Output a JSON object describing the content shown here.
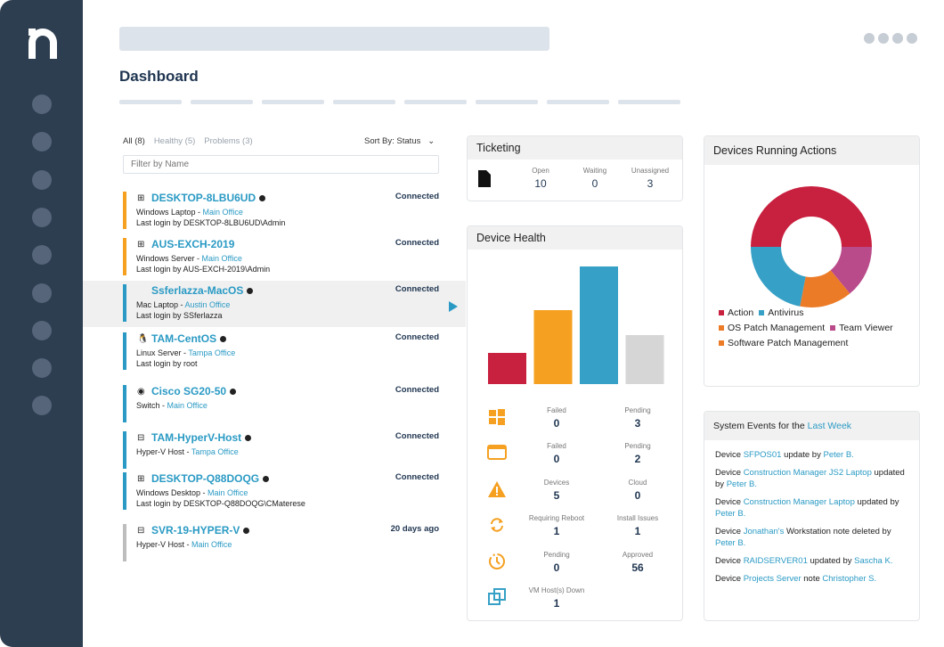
{
  "page_title": "Dashboard",
  "device_list": {
    "filters": [
      {
        "label": "All (8)",
        "active": true
      },
      {
        "label": "Healthy (5)"
      },
      {
        "label": "Problems (3)"
      }
    ],
    "sort_label": "Sort By: Status",
    "filter_placeholder": "Filter by Name",
    "devices": [
      {
        "name": "DESKTOP-8LBU6UD",
        "os": "windows",
        "info_icon": true,
        "type": "Windows Laptop",
        "location": "Main Office",
        "login": "Last login by DESKTOP-8LBU6UD\\Admin",
        "status": "Connected",
        "color": "#f5a021"
      },
      {
        "name": "AUS-EXCH-2019",
        "os": "windows",
        "type": "Windows Server",
        "location": "Main Office",
        "login": "Last login by AUS-EXCH-2019\\Admin",
        "status": "Connected",
        "color": "#f5a021"
      },
      {
        "name": "Ssferlazza-MacOS",
        "os": "apple",
        "info_icon": true,
        "type": "Mac Laptop",
        "location": "Austin Office",
        "login": "Last login by SSferlazza",
        "status": "Connected",
        "color": "#2a9ac4",
        "selected": true
      },
      {
        "name": "TAM-CentOS",
        "os": "linux",
        "info_icon": true,
        "type": "Linux Server",
        "location": "Tampa Office",
        "login": "Last login by root",
        "status": "Connected",
        "color": "#2a9ac4"
      },
      {
        "name": "Cisco SG20-50",
        "os": "network",
        "info_icon": true,
        "type": "Switch",
        "location": "Main Office",
        "login": "",
        "status": "Connected",
        "color": "#2a9ac4"
      },
      {
        "name": "TAM-HyperV-Host",
        "os": "hyperv",
        "info_icon": true,
        "type": "Hyper-V Host",
        "location": "Tampa Office",
        "login": "",
        "status": "Connected",
        "color": "#2a9ac4"
      },
      {
        "name": "DESKTOP-Q88DOQG",
        "os": "windows",
        "info_icon": true,
        "type": "Windows Desktop",
        "location": "Main Office",
        "login": "Last login by DESKTOP-Q88DOQG\\CMaterese",
        "status": "Connected",
        "color": "#2a9ac4"
      },
      {
        "name": "SVR-19-HYPER-V",
        "os": "hyperv",
        "info_icon": true,
        "type": "Hyper-V Host",
        "location": "Main Office",
        "login": "",
        "status": "20 days ago",
        "color": "#bdbdbd"
      }
    ]
  },
  "ticketing": {
    "title": "Ticketing",
    "icon": "document-icon",
    "cols": [
      {
        "label": "Open",
        "value": "10"
      },
      {
        "label": "Waiting",
        "value": "0"
      },
      {
        "label": "Unassigned",
        "value": "3"
      }
    ]
  },
  "device_health": {
    "title": "Device Health",
    "bars": [
      {
        "value": 35,
        "color": "#c8203f"
      },
      {
        "value": 83,
        "color": "#f5a021"
      },
      {
        "value": 132,
        "color": "#36a0c6"
      },
      {
        "value": 55,
        "color": "#d6d6d6"
      }
    ],
    "rows": [
      {
        "icon": "windows-icon",
        "a": {
          "label": "Failed",
          "value": "0"
        },
        "b": {
          "label": "Pending",
          "value": "3"
        }
      },
      {
        "icon": "window-icon",
        "a": {
          "label": "Failed",
          "value": "0"
        },
        "b": {
          "label": "Pending",
          "value": "2"
        }
      },
      {
        "icon": "warning-icon",
        "a": {
          "label": "Devices",
          "value": "5"
        },
        "b": {
          "label": "Cloud",
          "value": "0"
        }
      },
      {
        "icon": "refresh-icon",
        "a": {
          "label": "Requiring Reboot",
          "value": "1"
        },
        "b": {
          "label": "Install Issues",
          "value": "1"
        }
      },
      {
        "icon": "clock-icon",
        "a": {
          "label": "Pending",
          "value": "0"
        },
        "b": {
          "label": "Approved",
          "value": "56"
        }
      },
      {
        "icon": "vm-icon",
        "a": {
          "label": "VM Host(s) Down",
          "value": "1"
        }
      }
    ]
  },
  "running_actions": {
    "title": "Devices Running Actions",
    "slices": [
      {
        "name": "Action",
        "value": 50,
        "color": "#c8203f"
      },
      {
        "name": "Team Viewer",
        "value": 14,
        "color": "#b94b8a"
      },
      {
        "name": "OS Patch Management",
        "value": 14,
        "color": "#ec7b27"
      },
      {
        "name": "Antivirus",
        "value": 22,
        "color": "#36a0c6"
      }
    ],
    "legend": [
      {
        "name": "Action",
        "color": "#c8203f"
      },
      {
        "name": "Antivirus",
        "color": "#36a0c6"
      },
      {
        "name": "OS Patch Management",
        "color": "#ec7b27"
      },
      {
        "name": "Team Viewer",
        "color": "#b94b8a"
      },
      {
        "name": "Software Patch Management",
        "color": "#ec7b27"
      }
    ]
  },
  "system_events": {
    "title_prefix": "System Events for the",
    "title_link": "Last Week",
    "events": [
      [
        [
          "Device ",
          0
        ],
        [
          "SFPOS01",
          1
        ],
        [
          " update by ",
          0
        ],
        [
          "Peter B.",
          1
        ]
      ],
      [
        [
          "Device ",
          0
        ],
        [
          "Construction Manager JS2 Laptop",
          1
        ],
        [
          " updated by ",
          0
        ],
        [
          "Peter B.",
          1
        ]
      ],
      [
        [
          "Device ",
          0
        ],
        [
          "Construction Manager Laptop",
          1
        ],
        [
          " updated by ",
          0
        ],
        [
          "Peter B.",
          1
        ]
      ],
      [
        [
          "Device ",
          0
        ],
        [
          "Jonathan's",
          1
        ],
        [
          " Workstation note deleted by ",
          0
        ],
        [
          "Peter B.",
          1
        ]
      ],
      [
        [
          "Device ",
          0
        ],
        [
          "RAIDSERVER01",
          1
        ],
        [
          " updated by ",
          0
        ],
        [
          "Sascha K.",
          1
        ]
      ],
      [
        [
          "Device ",
          0
        ],
        [
          "Projects Server",
          1
        ],
        [
          " note ",
          0
        ],
        [
          "Christopher S.",
          1
        ]
      ]
    ]
  }
}
